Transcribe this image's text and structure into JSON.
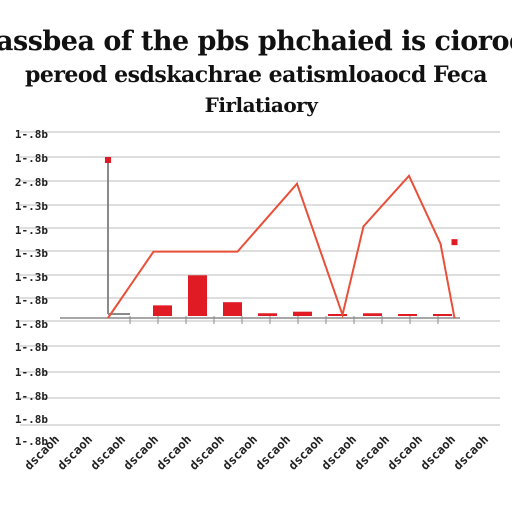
{
  "title": {
    "line1": "assbea of the pbs phchaied is ciorod",
    "line2": "pereod esdskachrae eatismloaocd Feca",
    "line3": "Firlatiaory"
  },
  "chart_data": {
    "type": "bar",
    "title": "assbea of the pbs phchaied is ciorod pereod esdskachrae eatismloaocd Feca Firlatiaory",
    "xlabel": "",
    "ylabel": "",
    "grid": true,
    "legend": "none",
    "colors": {
      "bar": "#e01b24",
      "line": "#e8503a",
      "grid": "#bdbdbd",
      "axis": "#8a8a8a",
      "text": "#222222"
    },
    "y_tick_labels": [
      "1-.8b",
      "1-.8b",
      "2-.8b",
      "1-.3b",
      "1-.3b",
      "1-.3b",
      "1-.3b",
      "1-.8b",
      "1-.8b",
      "1-.8b",
      "1-.8b",
      "1-.8b",
      "1-.8b",
      "1-.8b"
    ],
    "categories": [
      "dscaoh",
      "dscaoh",
      "dscaoh",
      "dscaoh",
      "dscaoh",
      "dscaoh",
      "dscaoh",
      "dscaoh",
      "dscaoh",
      "dscaoh",
      "dscaoh",
      "dscaoh",
      "dscaoh",
      "dscaoh"
    ],
    "ylim": [
      0,
      100
    ],
    "bars": [
      {
        "x": 1.5,
        "value": 8
      },
      {
        "x": 2.5,
        "value": 27
      },
      {
        "x": 3.5,
        "value": 10
      },
      {
        "x": 4.5,
        "value": 3
      },
      {
        "x": 5.5,
        "value": 4
      },
      {
        "x": 6.5,
        "value": 0.5
      },
      {
        "x": 7.5,
        "value": 3
      },
      {
        "x": 8.5,
        "value": 0.5
      },
      {
        "x": 9.5,
        "value": 0.5
      }
    ],
    "series": [
      {
        "x": [
          0,
          1.3,
          3.7,
          5.4,
          6.7,
          7.3,
          8.6,
          9.5,
          9.9
        ],
        "values": [
          0,
          42,
          42,
          85,
          2,
          58,
          90,
          47,
          0
        ]
      }
    ],
    "line_endpoint_markers": [
      {
        "x": 0,
        "value": 100
      },
      {
        "x": 9.9,
        "value": 48
      }
    ]
  }
}
